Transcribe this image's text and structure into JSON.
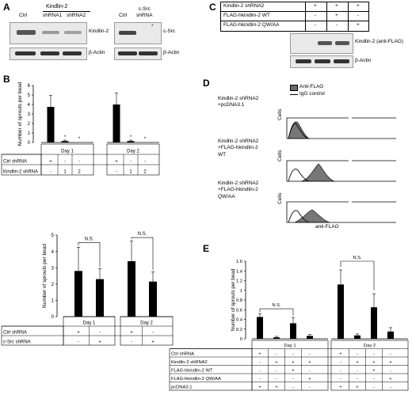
{
  "panels": {
    "a": "A",
    "b": "B",
    "c": "C",
    "d": "D",
    "e": "E"
  },
  "panel_a": {
    "blot1_lanes": [
      "Ctrl",
      "shRNA1",
      "shRNA2"
    ],
    "blot1_group": "Kindlin-2",
    "blot1_protein": "Kindlin-2",
    "actin": "β-Actin",
    "blot2_lanes": [
      "Ctrl",
      "c-Src\nshRNA"
    ],
    "blot2_protein": "c-Src",
    "asterisk": "*"
  },
  "panel_c": {
    "rows": [
      {
        "label": "Kindlin-2 shRNA2",
        "marks": [
          "+",
          "+",
          "+"
        ]
      },
      {
        "label": "FLAG-hkindlin-2 WT",
        "marks": [
          "-",
          "+",
          "-"
        ]
      },
      {
        "label": "FLAG-hkindlin-2 QW/AA",
        "marks": [
          "-",
          "-",
          "+"
        ]
      }
    ],
    "blot_protein": "Kindlin-2 (anti-FLAG)",
    "actin": "β-Actin"
  },
  "panel_d": {
    "legend": [
      "Anti-FLAG",
      "IgG control"
    ],
    "conditions": [
      "Kindlin-2 shRNA2\n+pcDNA3.1",
      "Kindlin-2 shRNA2\n+FLAG-hkindlin-2\nWT",
      "Kindlin-2 shRNA2\n+FLAG-hkindlin-2\nQW/AA"
    ],
    "ylabel": "Cells",
    "xlabel": "anti-FLAG"
  },
  "chart_data": [
    {
      "id": "B-top",
      "type": "bar",
      "ylabel": "Number of sprouts per bead",
      "ylim": [
        0,
        6
      ],
      "yticks": [
        "0",
        "1",
        "2",
        "3",
        "4",
        "5",
        "6"
      ],
      "days": [
        "Day 1",
        "Day 2"
      ],
      "rows": [
        {
          "label": "Ctrl shRNA",
          "day1": [
            "+",
            "-",
            "-"
          ],
          "day2": [
            "+",
            "-",
            "-"
          ]
        },
        {
          "label": "Kindlin-2 shRNA",
          "day1": [
            "-",
            "1",
            "2"
          ],
          "day2": [
            "-",
            "1",
            "2"
          ]
        }
      ],
      "values": [
        [
          3.75,
          0.15,
          0
        ],
        [
          4.0,
          0.15,
          0
        ]
      ],
      "errors": [
        [
          1.2,
          0.1,
          0
        ],
        [
          1.2,
          0.1,
          0
        ]
      ],
      "stars": [
        [
          false,
          true,
          true
        ],
        [
          false,
          true,
          true
        ]
      ],
      "star_text": "*"
    },
    {
      "id": "B-bottom",
      "type": "bar",
      "ylabel": "Number of sprouts per bead",
      "ylim": [
        0,
        5
      ],
      "yticks": [
        "0",
        "1",
        "2",
        "3",
        "4",
        "5"
      ],
      "days": [
        "Day 1",
        "Day 2"
      ],
      "rows": [
        {
          "label": "Ctrl shRNA",
          "day1": [
            "+",
            "-"
          ],
          "day2": [
            "+",
            "-"
          ]
        },
        {
          "label": "c-Src shRNA",
          "day1": [
            "-",
            "+"
          ],
          "day2": [
            "-",
            "+"
          ]
        }
      ],
      "values": [
        [
          2.8,
          2.3
        ],
        [
          3.4,
          2.15
        ]
      ],
      "errors": [
        [
          1.45,
          0.65
        ],
        [
          1.25,
          0.6
        ]
      ],
      "sig": "N.S."
    },
    {
      "id": "E",
      "type": "bar",
      "ylabel": "Number of sprouts per bead",
      "ylim": [
        0,
        1.6
      ],
      "yticks": [
        "0",
        "0.2",
        "0.4",
        "0.6",
        "0.8",
        "1",
        "1.2",
        "1.4",
        "1.6"
      ],
      "days": [
        "Day 1",
        "Day 2"
      ],
      "rows": [
        {
          "label": "Ctrl shRNA",
          "day1": [
            "+",
            "-",
            "-",
            "-"
          ],
          "day2": [
            "+",
            "-",
            "-",
            "-"
          ]
        },
        {
          "label": "Kindlin-2 shRNA2",
          "day1": [
            "-",
            "+",
            "+",
            "+"
          ],
          "day2": [
            "-",
            "+",
            "+",
            "+"
          ]
        },
        {
          "label": "FLAG-hkindlin-2 WT",
          "day1": [
            "-",
            "-",
            "+",
            "-"
          ],
          "day2": [
            "-",
            "-",
            "+",
            "-"
          ]
        },
        {
          "label": "FLAG-hkindlin-2 QW/AA",
          "day1": [
            "-",
            "-",
            "-",
            "+"
          ],
          "day2": [
            "-",
            "-",
            "-",
            "+"
          ]
        },
        {
          "label": "pcDNA3.1",
          "day1": [
            "+",
            "+",
            "-",
            "-"
          ],
          "day2": [
            "+",
            "+",
            "-",
            "-"
          ]
        }
      ],
      "values": [
        [
          0.45,
          0.03,
          0.32,
          0.06
        ],
        [
          1.12,
          0.07,
          0.65,
          0.15
        ]
      ],
      "errors": [
        [
          0.07,
          0.02,
          0.12,
          0.03
        ],
        [
          0.3,
          0.03,
          0.28,
          0.08
        ]
      ],
      "sig": "N.S."
    }
  ]
}
